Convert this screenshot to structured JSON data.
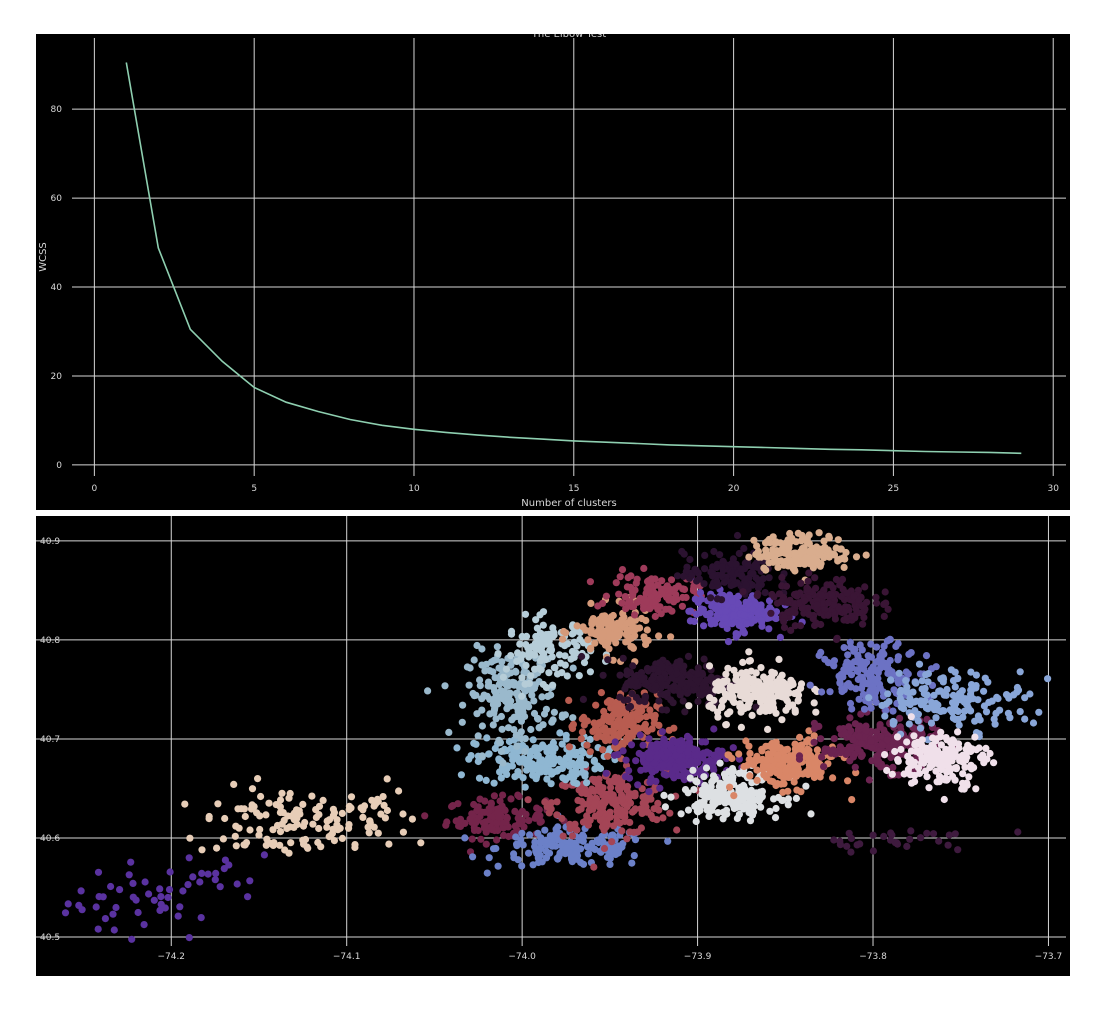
{
  "chart_data": [
    {
      "type": "line",
      "title": "The Elbow Test",
      "xlabel": "Number of clusters",
      "ylabel": "WCSS",
      "xlim": [
        -0.7,
        30.4
      ],
      "ylim": [
        -2.5,
        96
      ],
      "xticks": [
        "0",
        "5",
        "10",
        "15",
        "20",
        "25",
        "30"
      ],
      "yticks": [
        "0",
        "20",
        "40",
        "60",
        "80"
      ],
      "grid": true,
      "background": "#000000",
      "grid_color": "#d6d6d6",
      "line_color": "#8ecfb0",
      "series": [
        {
          "x": [
            1,
            2,
            3,
            4,
            5,
            6,
            7,
            8,
            9,
            10,
            11,
            12,
            13,
            14,
            15,
            16,
            17,
            18,
            19,
            20,
            21,
            22,
            23,
            24,
            25,
            26,
            27,
            28,
            29
          ],
          "values": [
            90.5,
            48.8,
            30.5,
            23.3,
            17.4,
            14.1,
            12.0,
            10.2,
            8.9,
            8.0,
            7.3,
            6.7,
            6.2,
            5.8,
            5.4,
            5.1,
            4.8,
            4.5,
            4.3,
            4.1,
            3.9,
            3.7,
            3.5,
            3.4,
            3.2,
            3.0,
            2.9,
            2.8,
            2.6
          ]
        }
      ]
    },
    {
      "type": "scatter",
      "title": "",
      "xlabel": "",
      "ylabel": "",
      "xlim": [
        -74.26,
        -73.69
      ],
      "ylim": [
        40.495,
        40.915
      ],
      "xticks": [
        "−74.2",
        "−74.1",
        "−74.0",
        "−73.9",
        "−73.8",
        "−73.7"
      ],
      "yticks": [
        "40.5",
        "40.6",
        "40.7",
        "40.8",
        "40.9"
      ],
      "grid": true,
      "background": "#000000",
      "grid_color": "#d6d6d6",
      "marker_radius_note": "small filled circles, 1 point per pickup",
      "clusters": [
        {
          "cx": -74.215,
          "cy": 40.535,
          "sx": 0.022,
          "sy": 0.02,
          "n": 45,
          "color": "#5a32a0"
        },
        {
          "cx": -74.165,
          "cy": 40.565,
          "sx": 0.012,
          "sy": 0.012,
          "n": 12,
          "color": "#5a32a0"
        },
        {
          "cx": -74.135,
          "cy": 40.615,
          "sx": 0.025,
          "sy": 0.018,
          "n": 110,
          "color": "#e7cdb7"
        },
        {
          "cx": -74.085,
          "cy": 40.625,
          "sx": 0.01,
          "sy": 0.015,
          "n": 30,
          "color": "#e7cdb7"
        },
        {
          "cx": -74.015,
          "cy": 40.62,
          "sx": 0.014,
          "sy": 0.01,
          "n": 120,
          "color": "#74244a"
        },
        {
          "cx": -73.97,
          "cy": 40.59,
          "sx": 0.022,
          "sy": 0.01,
          "n": 160,
          "color": "#6b80c8"
        },
        {
          "cx": -73.95,
          "cy": 40.635,
          "sx": 0.016,
          "sy": 0.016,
          "n": 220,
          "color": "#a44556"
        },
        {
          "cx": -73.99,
          "cy": 40.678,
          "sx": 0.018,
          "sy": 0.012,
          "n": 190,
          "color": "#8fb7d2"
        },
        {
          "cx": -74.005,
          "cy": 40.745,
          "sx": 0.013,
          "sy": 0.022,
          "n": 200,
          "color": "#9ab9cc"
        },
        {
          "cx": -73.985,
          "cy": 40.79,
          "sx": 0.012,
          "sy": 0.016,
          "n": 120,
          "color": "#b6cdd8"
        },
        {
          "cx": -73.948,
          "cy": 40.808,
          "sx": 0.011,
          "sy": 0.012,
          "n": 130,
          "color": "#d59a7a"
        },
        {
          "cx": -73.925,
          "cy": 40.846,
          "sx": 0.012,
          "sy": 0.01,
          "n": 110,
          "color": "#9e3b5a"
        },
        {
          "cx": -73.945,
          "cy": 40.715,
          "sx": 0.011,
          "sy": 0.015,
          "n": 170,
          "color": "#b85c50"
        },
        {
          "cx": -73.912,
          "cy": 40.758,
          "sx": 0.016,
          "sy": 0.012,
          "n": 220,
          "color": "#2e1430"
        },
        {
          "cx": -73.913,
          "cy": 40.68,
          "sx": 0.014,
          "sy": 0.011,
          "n": 220,
          "color": "#5a2a8a"
        },
        {
          "cx": -73.88,
          "cy": 40.828,
          "sx": 0.012,
          "sy": 0.01,
          "n": 180,
          "color": "#6749b6"
        },
        {
          "cx": -73.882,
          "cy": 40.866,
          "sx": 0.013,
          "sy": 0.011,
          "n": 120,
          "color": "#2b1230"
        },
        {
          "cx": -73.84,
          "cy": 40.888,
          "sx": 0.014,
          "sy": 0.009,
          "n": 170,
          "color": "#d9ad8e"
        },
        {
          "cx": -73.83,
          "cy": 40.838,
          "sx": 0.015,
          "sy": 0.012,
          "n": 180,
          "color": "#3a1535"
        },
        {
          "cx": -73.865,
          "cy": 40.745,
          "sx": 0.014,
          "sy": 0.013,
          "n": 220,
          "color": "#e8dbd7"
        },
        {
          "cx": -73.88,
          "cy": 40.645,
          "sx": 0.014,
          "sy": 0.012,
          "n": 200,
          "color": "#dde0e3"
        },
        {
          "cx": -73.848,
          "cy": 40.675,
          "sx": 0.014,
          "sy": 0.012,
          "n": 200,
          "color": "#d98667"
        },
        {
          "cx": -73.795,
          "cy": 40.695,
          "sx": 0.017,
          "sy": 0.013,
          "n": 230,
          "color": "#6b2350"
        },
        {
          "cx": -73.8,
          "cy": 40.765,
          "sx": 0.014,
          "sy": 0.016,
          "n": 160,
          "color": "#6c72c4"
        },
        {
          "cx": -73.755,
          "cy": 40.74,
          "sx": 0.022,
          "sy": 0.015,
          "n": 160,
          "color": "#89a6d8"
        },
        {
          "cx": -73.762,
          "cy": 40.68,
          "sx": 0.013,
          "sy": 0.014,
          "n": 170,
          "color": "#f0e0ea"
        },
        {
          "cx": -73.79,
          "cy": 40.598,
          "sx": 0.03,
          "sy": 0.006,
          "n": 30,
          "color": "#3e1a3e"
        }
      ]
    }
  ]
}
